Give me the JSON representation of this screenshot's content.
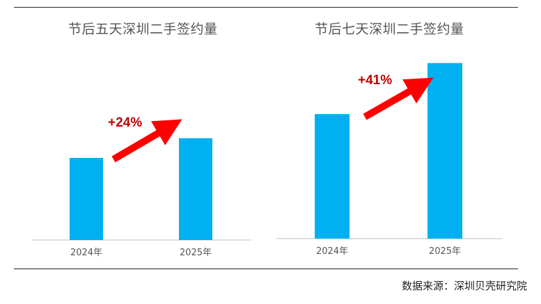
{
  "colors": {
    "bar": "#00B0F0",
    "arrow": "#FF0000",
    "label": "#C00000",
    "axis": "#bfbfbf",
    "tick_text": "#555555"
  },
  "source_text": "数据来源：深圳贝壳研究院",
  "chart_data": [
    {
      "type": "bar",
      "title": "节后五天深圳二手签约量",
      "categories": [
        "2024年",
        "2025年"
      ],
      "values": [
        100,
        124
      ],
      "annotation": "+24%"
    },
    {
      "type": "bar",
      "title": "节后七天深圳二手签约量",
      "categories": [
        "2024年",
        "2025年"
      ],
      "values": [
        100,
        141
      ],
      "annotation": "+41%"
    }
  ]
}
